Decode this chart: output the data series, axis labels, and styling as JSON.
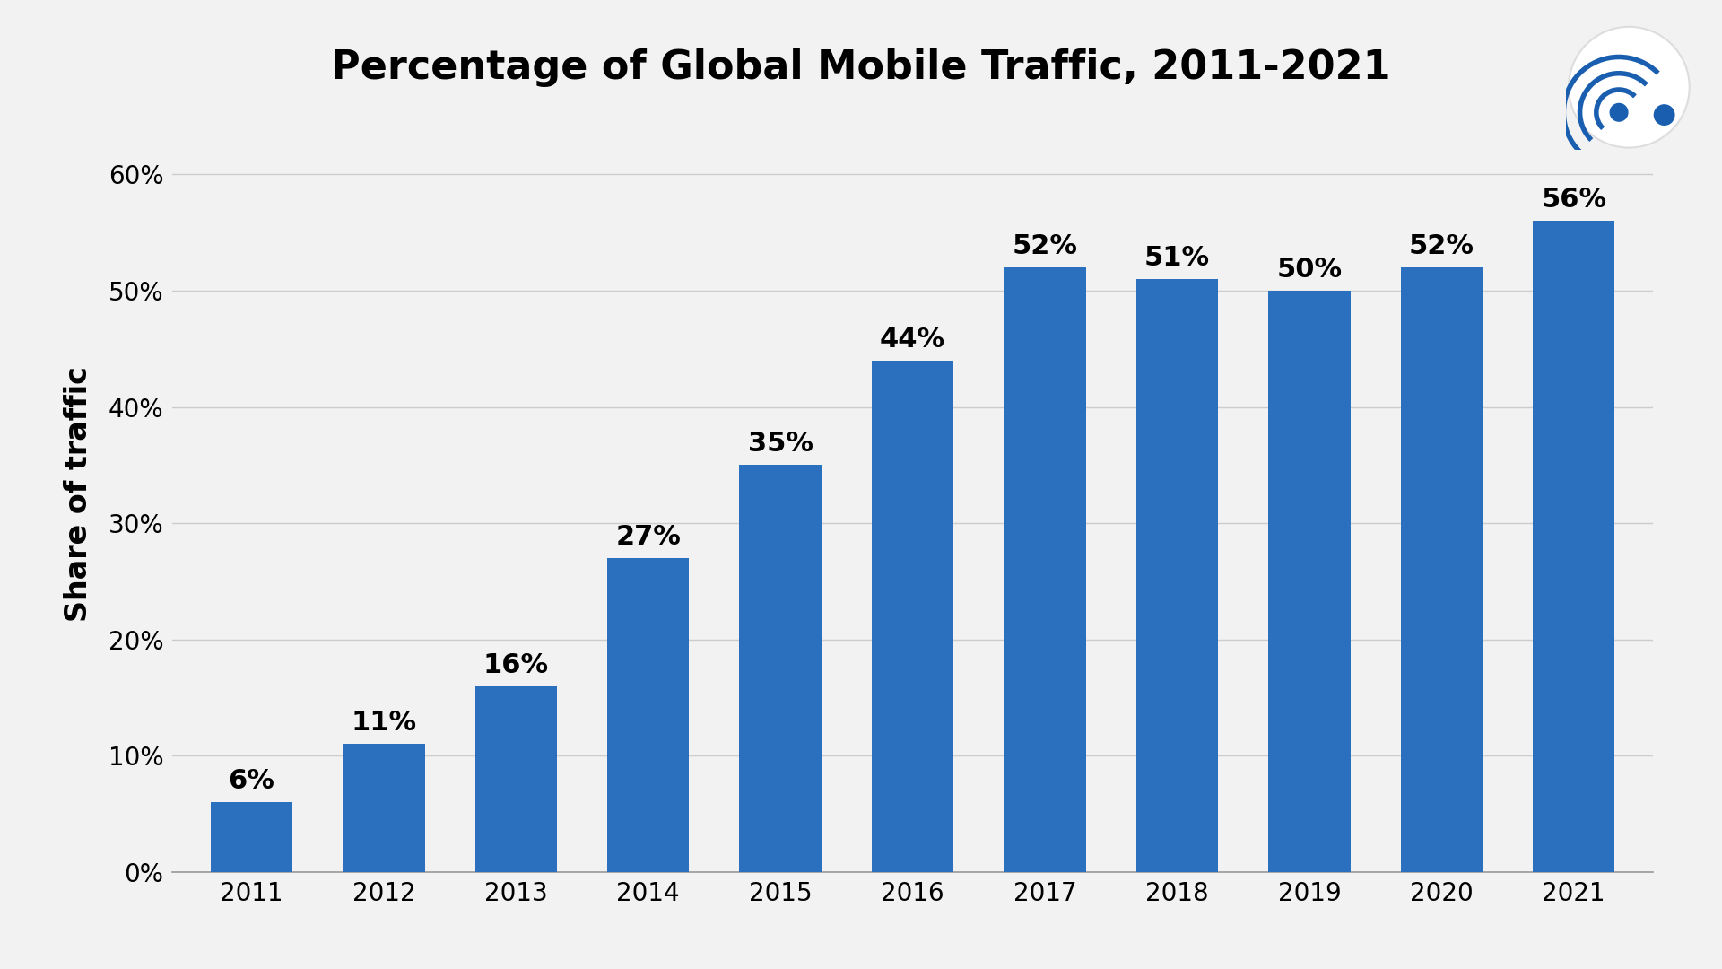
{
  "title": "Percentage of Global Mobile Traffic, 2011-2021",
  "ylabel": "Share of traffic",
  "years": [
    "2011",
    "2012",
    "2013",
    "2014",
    "2015",
    "2016",
    "2017",
    "2018",
    "2019",
    "2020",
    "2021"
  ],
  "values": [
    6,
    11,
    16,
    27,
    35,
    44,
    52,
    51,
    50,
    52,
    56
  ],
  "bar_color": "#2B6FBF",
  "bg_color": "#F2F2F2",
  "grid_color": "#CCCCCC",
  "ylim": [
    0,
    65
  ],
  "yticks": [
    0,
    10,
    20,
    30,
    40,
    50,
    60
  ],
  "ytick_labels": [
    "0%",
    "10%",
    "20%",
    "30%",
    "40%",
    "50%",
    "60%"
  ],
  "title_fontsize": 32,
  "label_fontsize": 24,
  "tick_fontsize": 20,
  "bar_label_fontsize": 22,
  "logo_blue": "#1A5FAF",
  "logo_white": "#FFFFFF"
}
